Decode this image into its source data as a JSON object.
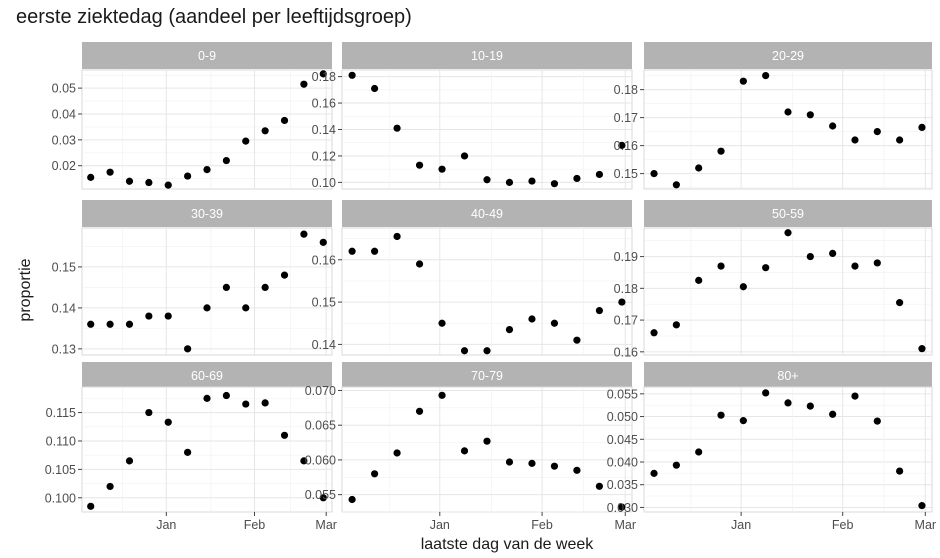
{
  "chart_data": {
    "type": "scatter",
    "title": "eerste ziektedag (aandeel per leeftijdsgroep)",
    "xlabel": "laatste dag van de week",
    "ylabel": "proportie",
    "x_ticks": [
      "Jan",
      "Feb",
      "Mar"
    ],
    "x": [
      "Dec 6",
      "Dec 13",
      "Dec 20",
      "Dec 27",
      "Jan 3",
      "Jan 10",
      "Jan 17",
      "Jan 24",
      "Jan 31",
      "Feb 7",
      "Feb 14",
      "Feb 21",
      "Feb 28"
    ],
    "grid": true,
    "point_color": "#000000",
    "strip_color": "#b3b3b3",
    "panels": [
      {
        "label": "0-9",
        "ylim": [
          0.011,
          0.057
        ],
        "y_ticks": [
          "0.02",
          "0.03",
          "0.04",
          "0.05"
        ],
        "values": [
          0.0155,
          0.0175,
          0.014,
          0.0135,
          0.0125,
          0.016,
          0.0185,
          0.022,
          0.0295,
          0.0335,
          0.0375,
          0.0515,
          0.0555
        ]
      },
      {
        "label": "10-19",
        "ylim": [
          0.095,
          0.185
        ],
        "y_ticks": [
          "0.10",
          "0.12",
          "0.14",
          "0.16",
          "0.18"
        ],
        "values": [
          0.181,
          0.171,
          0.141,
          0.113,
          0.11,
          0.12,
          0.102,
          0.1,
          0.101,
          0.099,
          0.103,
          0.106,
          0.128
        ]
      },
      {
        "label": "20-29",
        "ylim": [
          0.1445,
          0.187
        ],
        "y_ticks": [
          "0.15",
          "0.16",
          "0.17",
          "0.18"
        ],
        "values": [
          0.15,
          0.146,
          0.152,
          0.158,
          0.183,
          0.185,
          0.172,
          0.171,
          0.167,
          0.162,
          0.165,
          0.162,
          0.1665
        ]
      },
      {
        "label": "30-39",
        "ylim": [
          0.1285,
          0.1595
        ],
        "y_ticks": [
          "0.13",
          "0.14",
          "0.15"
        ],
        "values": [
          0.136,
          0.136,
          0.136,
          0.138,
          0.138,
          0.13,
          0.14,
          0.145,
          0.14,
          0.145,
          0.148,
          0.158,
          0.156
        ]
      },
      {
        "label": "40-49",
        "ylim": [
          0.1375,
          0.1675
        ],
        "y_ticks": [
          "0.14",
          "0.15",
          "0.16"
        ],
        "values": [
          0.162,
          0.162,
          0.1655,
          0.159,
          0.145,
          0.1385,
          0.1385,
          0.1435,
          0.146,
          0.145,
          0.141,
          0.148,
          0.15
        ]
      },
      {
        "label": "50-59",
        "ylim": [
          0.159,
          0.199
        ],
        "y_ticks": [
          "0.16",
          "0.17",
          "0.18",
          "0.19"
        ],
        "values": [
          0.166,
          0.1685,
          0.1825,
          0.187,
          0.1805,
          0.1865,
          0.1975,
          0.19,
          0.191,
          0.187,
          0.188,
          0.1755,
          0.161
        ]
      },
      {
        "label": "60-69",
        "ylim": [
          0.0975,
          0.1195
        ],
        "y_ticks": [
          "0.100",
          "0.105",
          "0.110",
          "0.115"
        ],
        "values": [
          0.0985,
          0.102,
          0.1065,
          0.115,
          0.1133,
          0.108,
          0.1175,
          0.118,
          0.1165,
          0.1167,
          0.111,
          0.1065,
          0.1
        ]
      },
      {
        "label": "70-79",
        "ylim": [
          0.0525,
          0.0705
        ],
        "y_ticks": [
          "0.055",
          "0.060",
          "0.065",
          "0.070"
        ],
        "values": [
          0.0543,
          0.058,
          0.061,
          0.067,
          0.0693,
          0.0613,
          0.0627,
          0.0597,
          0.0595,
          0.0591,
          0.0585,
          0.0562,
          0.0532
        ]
      },
      {
        "label": "80+",
        "ylim": [
          0.029,
          0.0565
        ],
        "y_ticks": [
          "0.030",
          "0.035",
          "0.040",
          "0.045",
          "0.050",
          "0.055"
        ],
        "values": [
          0.0375,
          0.0393,
          0.0422,
          0.0503,
          0.0491,
          0.0552,
          0.053,
          0.0523,
          0.0505,
          0.0545,
          0.049,
          0.038,
          0.0304
        ]
      }
    ]
  }
}
